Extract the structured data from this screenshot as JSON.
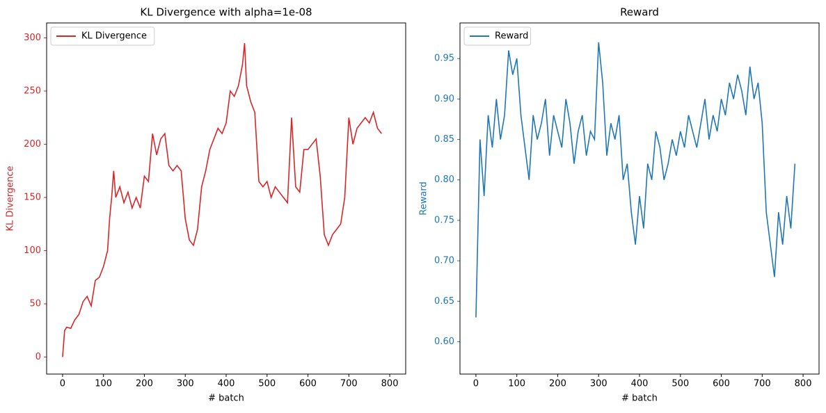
{
  "chart_data": [
    {
      "type": "line",
      "title": "KL Divergence with alpha=1e-08",
      "xlabel": "# batch",
      "ylabel": "KL Divergence",
      "x": [
        0,
        5,
        10,
        20,
        30,
        40,
        50,
        60,
        70,
        80,
        90,
        100,
        110,
        115,
        120,
        125,
        130,
        140,
        150,
        160,
        170,
        180,
        190,
        200,
        210,
        220,
        230,
        240,
        250,
        260,
        270,
        280,
        290,
        300,
        310,
        320,
        330,
        340,
        350,
        360,
        370,
        380,
        390,
        400,
        410,
        420,
        430,
        440,
        445,
        450,
        460,
        470,
        480,
        490,
        500,
        510,
        520,
        530,
        540,
        550,
        560,
        570,
        580,
        590,
        600,
        610,
        620,
        630,
        640,
        650,
        660,
        670,
        680,
        690,
        700,
        710,
        720,
        730,
        740,
        750,
        760,
        770,
        780
      ],
      "series": [
        {
          "name": "KL Divergence",
          "color": "#d62728",
          "values": [
            0,
            25,
            28,
            27,
            35,
            40,
            52,
            57,
            48,
            72,
            75,
            85,
            100,
            130,
            150,
            175,
            150,
            160,
            145,
            155,
            140,
            150,
            140,
            170,
            165,
            210,
            190,
            205,
            210,
            180,
            175,
            180,
            175,
            130,
            110,
            105,
            120,
            160,
            175,
            195,
            205,
            215,
            210,
            220,
            250,
            245,
            255,
            275,
            295,
            255,
            240,
            230,
            165,
            160,
            165,
            150,
            160,
            155,
            150,
            145,
            225,
            160,
            155,
            195,
            195,
            200,
            205,
            170,
            115,
            105,
            115,
            120,
            125,
            150,
            225,
            200,
            215,
            220,
            225,
            220,
            230,
            215,
            210
          ]
        }
      ],
      "xlim": [
        -39,
        839
      ],
      "ylim": [
        -16,
        314
      ],
      "xticks": [
        0,
        100,
        200,
        300,
        400,
        500,
        600,
        700,
        800
      ],
      "yticks": [
        0,
        50,
        100,
        150,
        200,
        250,
        300
      ],
      "legend": "upper left"
    },
    {
      "type": "line",
      "title": "Reward",
      "xlabel": "# batch",
      "ylabel": "Reward",
      "x": [
        0,
        10,
        20,
        30,
        40,
        50,
        60,
        70,
        80,
        90,
        100,
        110,
        120,
        130,
        140,
        150,
        160,
        170,
        180,
        190,
        200,
        210,
        220,
        230,
        240,
        250,
        260,
        270,
        280,
        290,
        300,
        310,
        320,
        330,
        340,
        350,
        360,
        370,
        380,
        390,
        400,
        410,
        420,
        430,
        440,
        450,
        460,
        470,
        480,
        490,
        500,
        510,
        520,
        530,
        540,
        550,
        560,
        570,
        580,
        590,
        600,
        610,
        620,
        630,
        640,
        650,
        660,
        670,
        680,
        690,
        700,
        710,
        720,
        730,
        740,
        750,
        760,
        770,
        780
      ],
      "series": [
        {
          "name": "Reward",
          "color": "#1f77b4",
          "values": [
            0.63,
            0.85,
            0.78,
            0.88,
            0.84,
            0.9,
            0.85,
            0.88,
            0.96,
            0.93,
            0.95,
            0.88,
            0.84,
            0.8,
            0.88,
            0.85,
            0.87,
            0.9,
            0.83,
            0.88,
            0.86,
            0.84,
            0.9,
            0.87,
            0.82,
            0.86,
            0.88,
            0.83,
            0.86,
            0.85,
            0.97,
            0.92,
            0.83,
            0.87,
            0.85,
            0.88,
            0.8,
            0.82,
            0.76,
            0.72,
            0.78,
            0.74,
            0.82,
            0.8,
            0.86,
            0.84,
            0.8,
            0.82,
            0.85,
            0.83,
            0.86,
            0.84,
            0.88,
            0.86,
            0.84,
            0.87,
            0.9,
            0.85,
            0.88,
            0.86,
            0.9,
            0.88,
            0.92,
            0.9,
            0.93,
            0.91,
            0.88,
            0.94,
            0.9,
            0.92,
            0.87,
            0.76,
            0.72,
            0.68,
            0.76,
            0.72,
            0.78,
            0.74,
            0.82
          ]
        }
      ],
      "xlim": [
        -39,
        839
      ],
      "ylim": [
        0.56,
        0.994
      ],
      "xticks": [
        0,
        100,
        200,
        300,
        400,
        500,
        600,
        700,
        800
      ],
      "yticks": [
        {
          "value": 0.6,
          "label": "0.60"
        },
        {
          "value": 0.65,
          "label": "0.65"
        },
        {
          "value": 0.7,
          "label": "0.70"
        },
        {
          "value": 0.75,
          "label": "0.75"
        },
        {
          "value": 0.8,
          "label": "0.80"
        },
        {
          "value": 0.85,
          "label": "0.85"
        },
        {
          "value": 0.9,
          "label": "0.90"
        },
        {
          "value": 0.95,
          "label": "0.95"
        }
      ],
      "legend": "upper left"
    }
  ]
}
